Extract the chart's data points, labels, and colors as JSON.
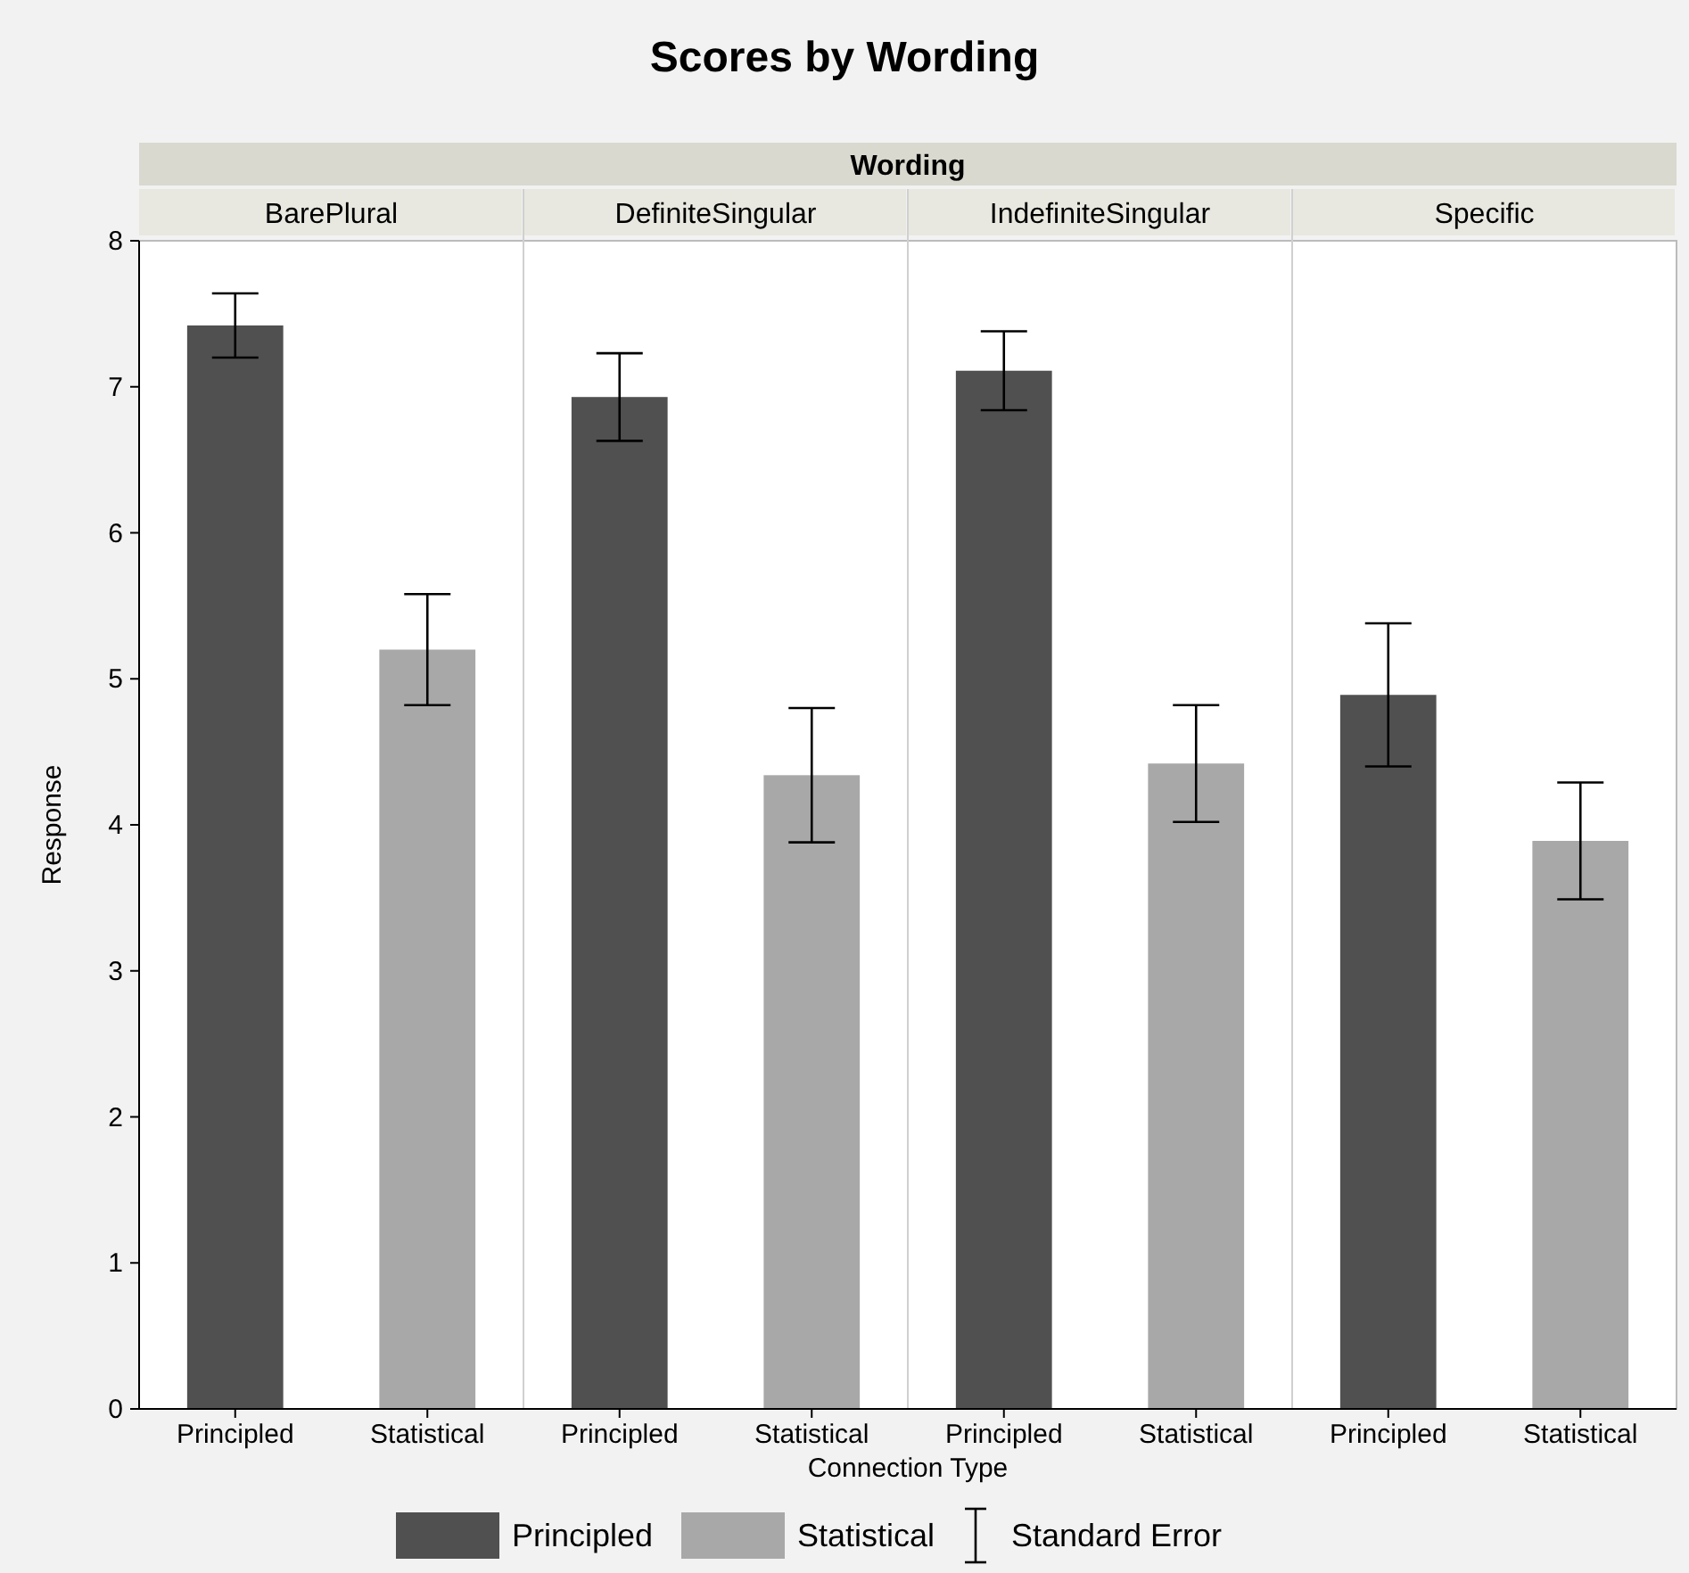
{
  "chart_data": {
    "type": "bar",
    "title": "Scores by Wording",
    "subtitle": "Wording",
    "xlabel": "Connection Type",
    "ylabel": "Response",
    "categories": [
      "Principled",
      "Statistical",
      "Principled",
      "Statistical",
      "Principled",
      "Statistical",
      "Principled",
      "Statistical"
    ],
    "series": [
      {
        "name": "Principled",
        "color": "#505050",
        "values": [
          7.42,
          null,
          6.93,
          null,
          7.11,
          null,
          4.89,
          null
        ],
        "errors": [
          0.22,
          null,
          0.3,
          null,
          0.27,
          null,
          0.49,
          null
        ]
      },
      {
        "name": "Statistical",
        "color": "#a8a8a8",
        "values": [
          null,
          5.2,
          null,
          4.34,
          null,
          4.42,
          null,
          3.89
        ],
        "errors": [
          null,
          0.38,
          null,
          0.46,
          null,
          0.4,
          null,
          0.4
        ]
      }
    ],
    "ylim": [
      0,
      8
    ],
    "yticks": [
      0,
      1,
      2,
      3,
      4,
      5,
      6,
      7,
      8
    ],
    "grid": false,
    "legend": "bottom",
    "annotations": [
      "BarePlural",
      "DefiniteSingular",
      "IndefiniteSingular",
      "Specific",
      "Standard Error"
    ]
  }
}
